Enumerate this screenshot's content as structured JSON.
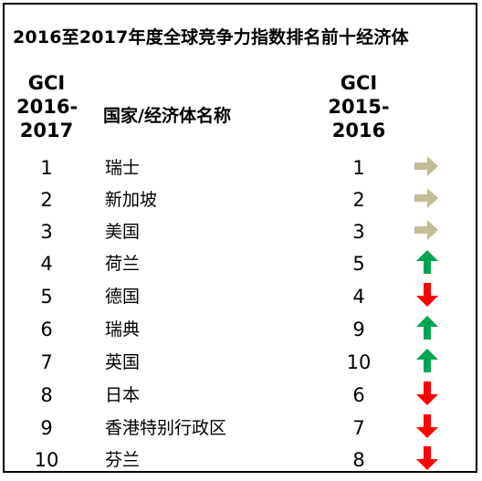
{
  "title": "2016至2017年度全球竞争力指数排名前十经济体",
  "headers": {
    "rank_2016": [
      "GCI",
      "2016-",
      "2017"
    ],
    "name": "国家/经济体名称",
    "rank_2015": [
      "GCI",
      "2015-",
      "2016"
    ]
  },
  "colors": {
    "same": "#c4bc9a",
    "up": "#00a651",
    "down": "#ff0000"
  },
  "rows": [
    {
      "rank": "1",
      "name": "瑞士",
      "prev": "1",
      "trend": "same"
    },
    {
      "rank": "2",
      "name": "新加坡",
      "prev": "2",
      "trend": "same"
    },
    {
      "rank": "3",
      "name": "美国",
      "prev": "3",
      "trend": "same"
    },
    {
      "rank": "4",
      "name": "荷兰",
      "prev": "5",
      "trend": "up"
    },
    {
      "rank": "5",
      "name": "德国",
      "prev": "4",
      "trend": "down"
    },
    {
      "rank": "6",
      "name": "瑞典",
      "prev": "9",
      "trend": "up"
    },
    {
      "rank": "7",
      "name": "英国",
      "prev": "10",
      "trend": "up"
    },
    {
      "rank": "8",
      "name": "日本",
      "prev": "6",
      "trend": "down"
    },
    {
      "rank": "9",
      "name": "香港特别行政区",
      "prev": "7",
      "trend": "down"
    },
    {
      "rank": "10",
      "name": "芬兰",
      "prev": "8",
      "trend": "down"
    }
  ]
}
